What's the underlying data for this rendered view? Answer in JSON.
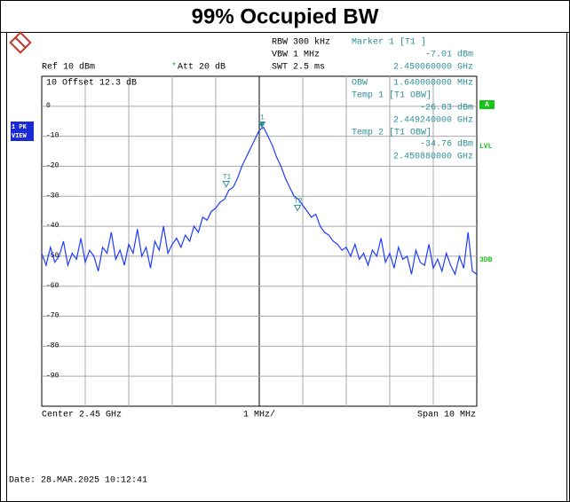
{
  "title": "99% Occupied BW",
  "header": {
    "rbw": "RBW 300 kHz",
    "vbw": "VBW 1 MHz",
    "swt": "SWT 2.5 ms",
    "ref": "Ref 10 dBm",
    "att_flag": "*",
    "att": "Att 20 dB",
    "offset": "10 Offset 12.3 dB"
  },
  "marker_panel": {
    "marker_title": "Marker 1 [T1 ]",
    "obw_label": "OBW",
    "obw_value": "1.640000000 MHz",
    "temp1_title": "Temp 1 [T1 OBW]",
    "temp2_title": "Temp 2 [T1 OBW]"
  },
  "side_labels": {
    "trace_1": "1 PK",
    "trace_2": "VIEW",
    "a": "A",
    "lvl": "LVL",
    "db3": "3DB"
  },
  "footer": {
    "center": "Center 2.45 GHz",
    "div": "1 MHz/",
    "span": "Span 10 MHz",
    "date": "Date: 28.MAR.2025  10:12:41"
  },
  "chart_data": {
    "type": "line",
    "color": "#1f3cff",
    "grid": true,
    "xlim": [
      2.445,
      2.455
    ],
    "ylim": [
      -100,
      10
    ],
    "yticks": [
      0,
      -10,
      -20,
      -30,
      -40,
      -50,
      -60,
      -70,
      -80,
      -90
    ],
    "x": [
      2.445,
      2.4451,
      2.4452,
      2.4453,
      2.4454,
      2.4455,
      2.4456,
      2.4457,
      2.4458,
      2.4459,
      2.446,
      2.4461,
      2.4462,
      2.4463,
      2.4464,
      2.4465,
      2.4466,
      2.4467,
      2.4468,
      2.4469,
      2.447,
      2.4471,
      2.4472,
      2.4473,
      2.4474,
      2.4475,
      2.4476,
      2.4477,
      2.4478,
      2.4479,
      2.448,
      2.4481,
      2.4482,
      2.4483,
      2.4484,
      2.4485,
      2.4486,
      2.4487,
      2.4488,
      2.4489,
      2.449,
      2.4491,
      2.4492,
      2.4493,
      2.4494,
      2.4495,
      2.4496,
      2.4497,
      2.4498,
      2.4499,
      2.45,
      2.4501,
      2.4502,
      2.4503,
      2.4504,
      2.4505,
      2.4506,
      2.4507,
      2.4508,
      2.4509,
      2.451,
      2.4511,
      2.4512,
      2.4513,
      2.4514,
      2.4515,
      2.4516,
      2.4517,
      2.4518,
      2.4519,
      2.452,
      2.4521,
      2.4522,
      2.4523,
      2.4524,
      2.4525,
      2.4526,
      2.4527,
      2.4528,
      2.4529,
      2.453,
      2.4531,
      2.4532,
      2.4533,
      2.4534,
      2.4535,
      2.4536,
      2.4537,
      2.4538,
      2.4539,
      2.454,
      2.4541,
      2.4542,
      2.4543,
      2.4544,
      2.4545,
      2.4546,
      2.4547,
      2.4548,
      2.4549,
      2.455
    ],
    "values": [
      -49,
      -53,
      -47,
      -52,
      -50,
      -45,
      -53,
      -49,
      -51,
      -44,
      -52,
      -48,
      -50,
      -55,
      -47,
      -49,
      -42,
      -51,
      -48,
      -53,
      -46,
      -49,
      -41,
      -50,
      -47,
      -54,
      -45,
      -48,
      -40,
      -49,
      -46,
      -44,
      -47,
      -43,
      -45,
      -40,
      -42,
      -37,
      -38,
      -35,
      -34,
      -32,
      -31,
      -28,
      -27,
      -24,
      -20,
      -17,
      -14,
      -11,
      -8,
      -7,
      -10,
      -13,
      -17,
      -20,
      -24,
      -27,
      -30,
      -31,
      -33,
      -35,
      -37,
      -36,
      -40,
      -42,
      -43,
      -45,
      -46,
      -48,
      -47,
      -50,
      -46,
      -51,
      -49,
      -53,
      -48,
      -50,
      -44,
      -52,
      -49,
      -54,
      -47,
      -51,
      -50,
      -56,
      -48,
      -52,
      -53,
      -46,
      -54,
      -51,
      -55,
      -49,
      -53,
      -56,
      -50,
      -54,
      -42,
      -55,
      -56
    ],
    "markers": [
      {
        "label": "1",
        "x": 2.45006,
        "x_label": "2.450060000 GHz",
        "value": -7.01,
        "value_label": "-7.01 dBm"
      },
      {
        "label": "T1",
        "x": 2.44924,
        "x_label": "2.449240000 GHz",
        "value": -26.83,
        "value_label": "-26.83 dBm"
      },
      {
        "label": "T2",
        "x": 2.45088,
        "x_label": "2.450880000 GHz",
        "value": -34.76,
        "value_label": "-34.76 dBm"
      }
    ]
  }
}
